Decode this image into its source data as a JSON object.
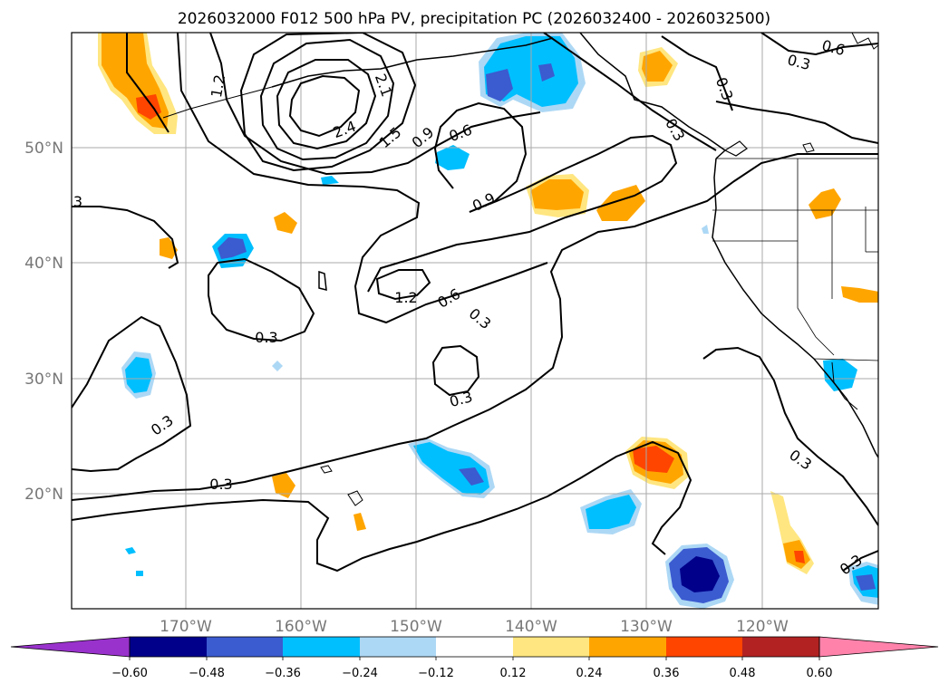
{
  "title": "2026032000 F012 500 hPa PV, precipitation PC (2026032400 - 2026032500)",
  "lat_labels": [
    "50°N",
    "40°N",
    "30°N",
    "20°N"
  ],
  "lon_labels": [
    "170°W",
    "160°W",
    "150°W",
    "140°W",
    "130°W",
    "120°W"
  ],
  "colorbar": {
    "tick_labels": [
      "−0.60",
      "−0.48",
      "−0.36",
      "−0.24",
      "−0.12",
      "0.12",
      "0.24",
      "0.36",
      "0.48",
      "0.60"
    ],
    "colors": [
      "#9932cc",
      "#00008b",
      "#3b5bd0",
      "#00bfff",
      "#add8f5",
      "#ffffff",
      "#ffe680",
      "#ffa500",
      "#ff4500",
      "#b22222",
      "#ff82ab"
    ]
  },
  "contour_labels": [
    "1.2",
    "2.1",
    "2.4",
    "1.5",
    "0.9",
    "0.6",
    "0.9",
    "1.2",
    "0.6",
    "0.3",
    "0.3",
    "0.3",
    "0.3",
    "0.3",
    "0.3",
    "0.6",
    "0.3",
    "0.3",
    "0.3",
    "0.3",
    "3"
  ]
}
